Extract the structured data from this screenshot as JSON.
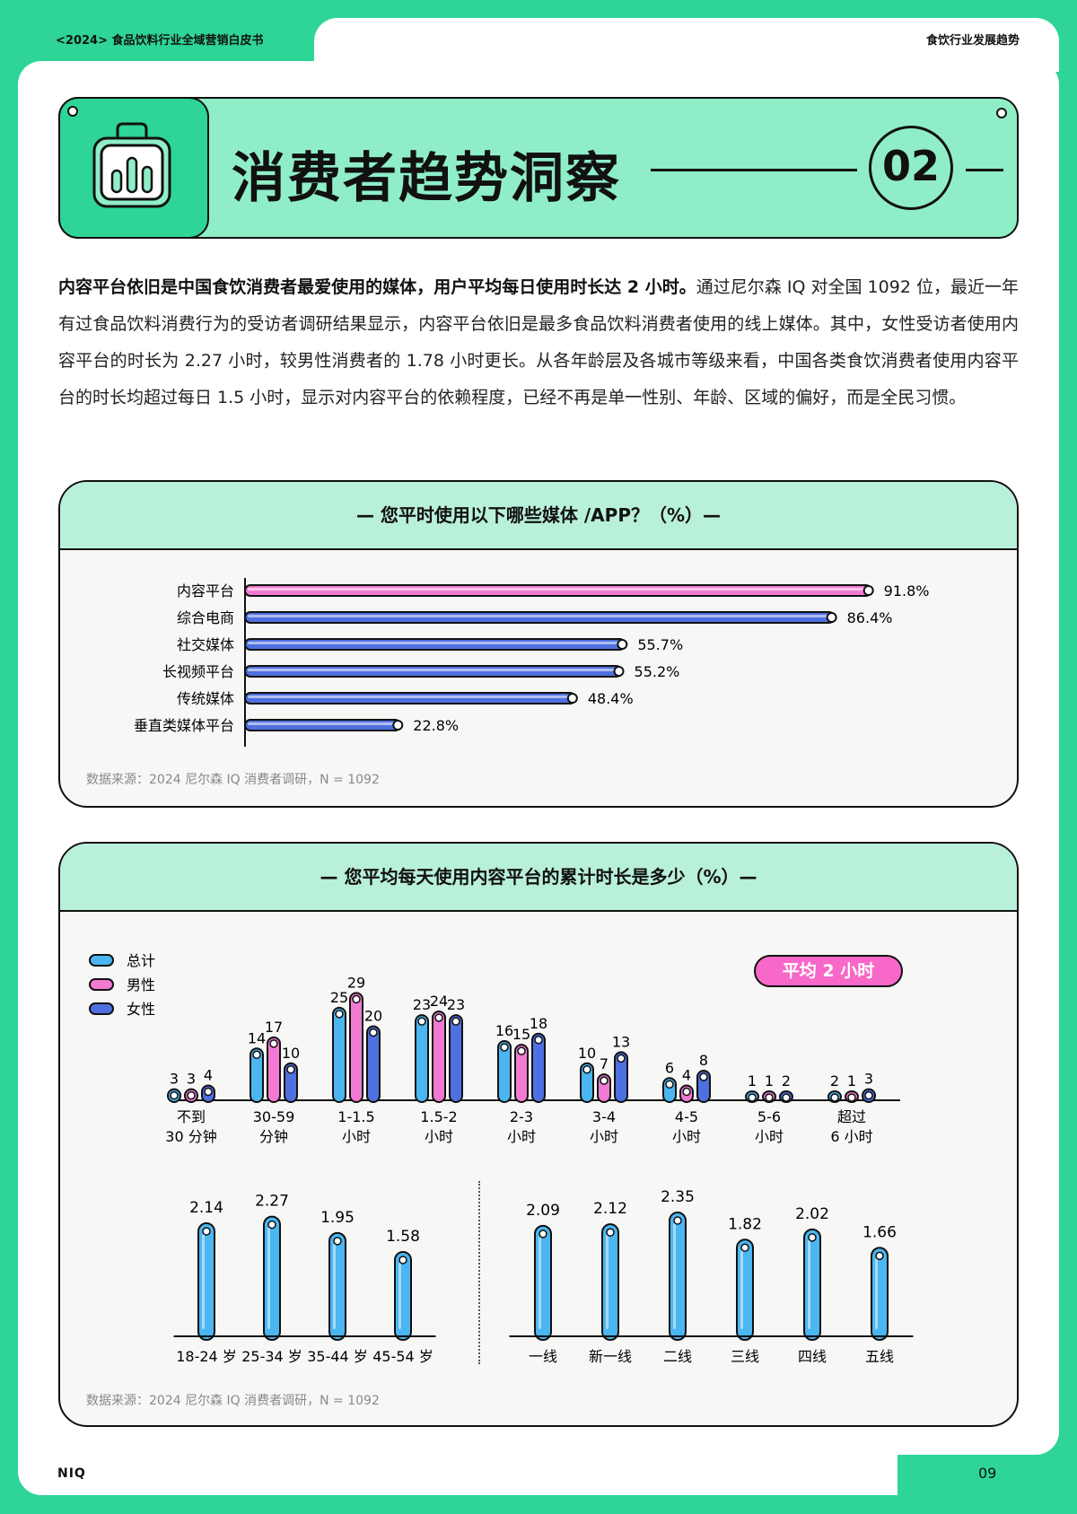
{
  "header": {
    "left": "<2024> 食品饮料行业全域营销白皮书",
    "right": "食饮行业发展趋势"
  },
  "banner": {
    "title": "消费者趋势洞察",
    "number": "02",
    "icon": "shopping-bag-chart-icon"
  },
  "intro": {
    "bold": "内容平台依旧是中国食饮消费者最爱使用的媒体，用户平均每日使用时长达 2 小时。",
    "text": "通过尼尔森 IQ 对全国 1092 位，最近一年有过食品饮料消费行为的受访者调研结果显示，内容平台依旧是最多食品饮料消费者使用的线上媒体。其中，女性受访者使用内容平台的时长为 2.27 小时，较男性消费者的 1.78 小时更长。从各年龄层及各城市等级来看，中国各类食饮消费者使用内容平台的时长均超过每日 1.5 小时，显示对内容平台的依赖程度，已经不再是单一性别、年龄、区域的偏好，而是全民习惯。"
  },
  "panel1": {
    "title": "—  您平时使用以下哪些媒体 /APP？（%）—",
    "source": "数据来源：2024 尼尔森 IQ 消费者调研，N = 1092"
  },
  "panel2": {
    "title": "—  您平均每天使用内容平台的累计时长是多少（%）—",
    "source": "数据来源：2024 尼尔森 IQ 消费者调研，N = 1092",
    "badge": "平均 2 小时"
  },
  "colors": {
    "pink": "#f27ad2",
    "blue": "#4f70e0",
    "lightblue": "#4bb6f2",
    "green": "#2ed596"
  },
  "chart_data": [
    {
      "type": "bar",
      "orientation": "horizontal",
      "title": "您平时使用以下哪些媒体 /APP？（%）",
      "categories": [
        "内容平台",
        "综合电商",
        "社交媒体",
        "长视频平台",
        "传统媒体",
        "垂直类媒体平台"
      ],
      "values": [
        91.8,
        86.4,
        55.7,
        55.2,
        48.4,
        22.8
      ],
      "value_labels": [
        "91.8%",
        "86.4%",
        "55.7%",
        "55.2%",
        "48.4%",
        "22.8%"
      ],
      "xlim": [
        0,
        100
      ]
    },
    {
      "type": "bar",
      "title": "您平均每天使用内容平台的累计时长是多少（%）",
      "legend": [
        "总计",
        "男性",
        "女性"
      ],
      "legend_position": "top-left",
      "categories": [
        [
          "不到",
          "30 分钟"
        ],
        [
          "30-59",
          "分钟"
        ],
        [
          "1-1.5",
          "小时"
        ],
        [
          "1.5-2",
          "小时"
        ],
        [
          "2-3",
          "小时"
        ],
        [
          "3-4",
          "小时"
        ],
        [
          "4-5",
          "小时"
        ],
        [
          "5-6",
          "小时"
        ],
        [
          "超过",
          "6 小时"
        ]
      ],
      "series": [
        {
          "name": "总计",
          "values": [
            3,
            14,
            25,
            23,
            16,
            10,
            6,
            1,
            2
          ]
        },
        {
          "name": "男性",
          "values": [
            3,
            17,
            29,
            24,
            15,
            7,
            4,
            1,
            1
          ]
        },
        {
          "name": "女性",
          "values": [
            4,
            10,
            20,
            23,
            18,
            13,
            8,
            2,
            3
          ]
        }
      ],
      "ylim": [
        0,
        32
      ]
    },
    {
      "type": "bar",
      "categories": [
        "18-24 岁",
        "25-34 岁",
        "35-44 岁",
        "45-54 岁"
      ],
      "values": [
        2.14,
        2.27,
        1.95,
        1.58
      ],
      "value_labels": [
        "2.14",
        "2.27",
        "1.95",
        "1.58"
      ],
      "ylim": [
        0,
        2.6
      ]
    },
    {
      "type": "bar",
      "categories": [
        "一线",
        "新一线",
        "二线",
        "三线",
        "四线",
        "五线"
      ],
      "values": [
        2.09,
        2.12,
        2.35,
        1.82,
        2.02,
        1.66
      ],
      "value_labels": [
        "2.09",
        "2.12",
        "2.35",
        "1.82",
        "2.02",
        "1.66"
      ],
      "ylim": [
        0,
        2.6
      ]
    }
  ],
  "footer": {
    "logo": "NIQ",
    "page": "09"
  }
}
